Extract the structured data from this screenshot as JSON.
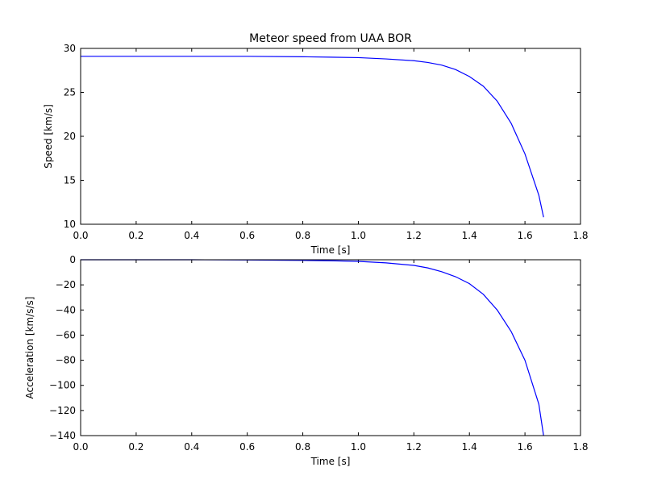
{
  "chart_data": [
    {
      "type": "line",
      "title": "Meteor speed from  UAA BOR",
      "xlabel": "Time [s]",
      "ylabel": "Speed [km/s]",
      "xlim": [
        0.0,
        1.8
      ],
      "ylim": [
        10,
        30
      ],
      "xticks": [
        "0.0",
        "0.2",
        "0.4",
        "0.6",
        "0.8",
        "1.0",
        "1.2",
        "1.4",
        "1.6",
        "1.8"
      ],
      "yticks": [
        "10",
        "15",
        "20",
        "25",
        "30"
      ],
      "grid": false,
      "series": [
        {
          "color": "#0000ff",
          "x": [
            0.0,
            0.2,
            0.4,
            0.6,
            0.8,
            0.9,
            1.0,
            1.1,
            1.2,
            1.25,
            1.3,
            1.35,
            1.4,
            1.45,
            1.5,
            1.55,
            1.6,
            1.65,
            1.667
          ],
          "y": [
            29.1,
            29.1,
            29.1,
            29.1,
            29.05,
            29.0,
            28.95,
            28.8,
            28.6,
            28.4,
            28.1,
            27.6,
            26.8,
            25.7,
            24.0,
            21.5,
            18.0,
            13.3,
            10.8
          ]
        }
      ]
    },
    {
      "type": "line",
      "title": "",
      "xlabel": "Time [s]",
      "ylabel": "Acceleration [km/s/s]",
      "xlim": [
        0.0,
        1.8
      ],
      "ylim": [
        -140,
        0
      ],
      "xticks": [
        "0.0",
        "0.2",
        "0.4",
        "0.6",
        "0.8",
        "1.0",
        "1.2",
        "1.4",
        "1.6",
        "1.8"
      ],
      "yticks": [
        "0",
        "−20",
        "−40",
        "−60",
        "−80",
        "−100",
        "−120",
        "−140"
      ],
      "grid": false,
      "series": [
        {
          "color": "#0000ff",
          "x": [
            0.0,
            0.2,
            0.4,
            0.6,
            0.8,
            0.9,
            1.0,
            1.1,
            1.2,
            1.25,
            1.3,
            1.35,
            1.4,
            1.45,
            1.5,
            1.55,
            1.6,
            1.65,
            1.667
          ],
          "y": [
            0,
            0,
            0,
            -0.2,
            -0.5,
            -0.8,
            -1.3,
            -2.5,
            -4.5,
            -6.5,
            -9.5,
            -13.5,
            -19.0,
            -27.5,
            -40.0,
            -57.0,
            -80.0,
            -115.0,
            -140.0
          ]
        }
      ]
    }
  ]
}
